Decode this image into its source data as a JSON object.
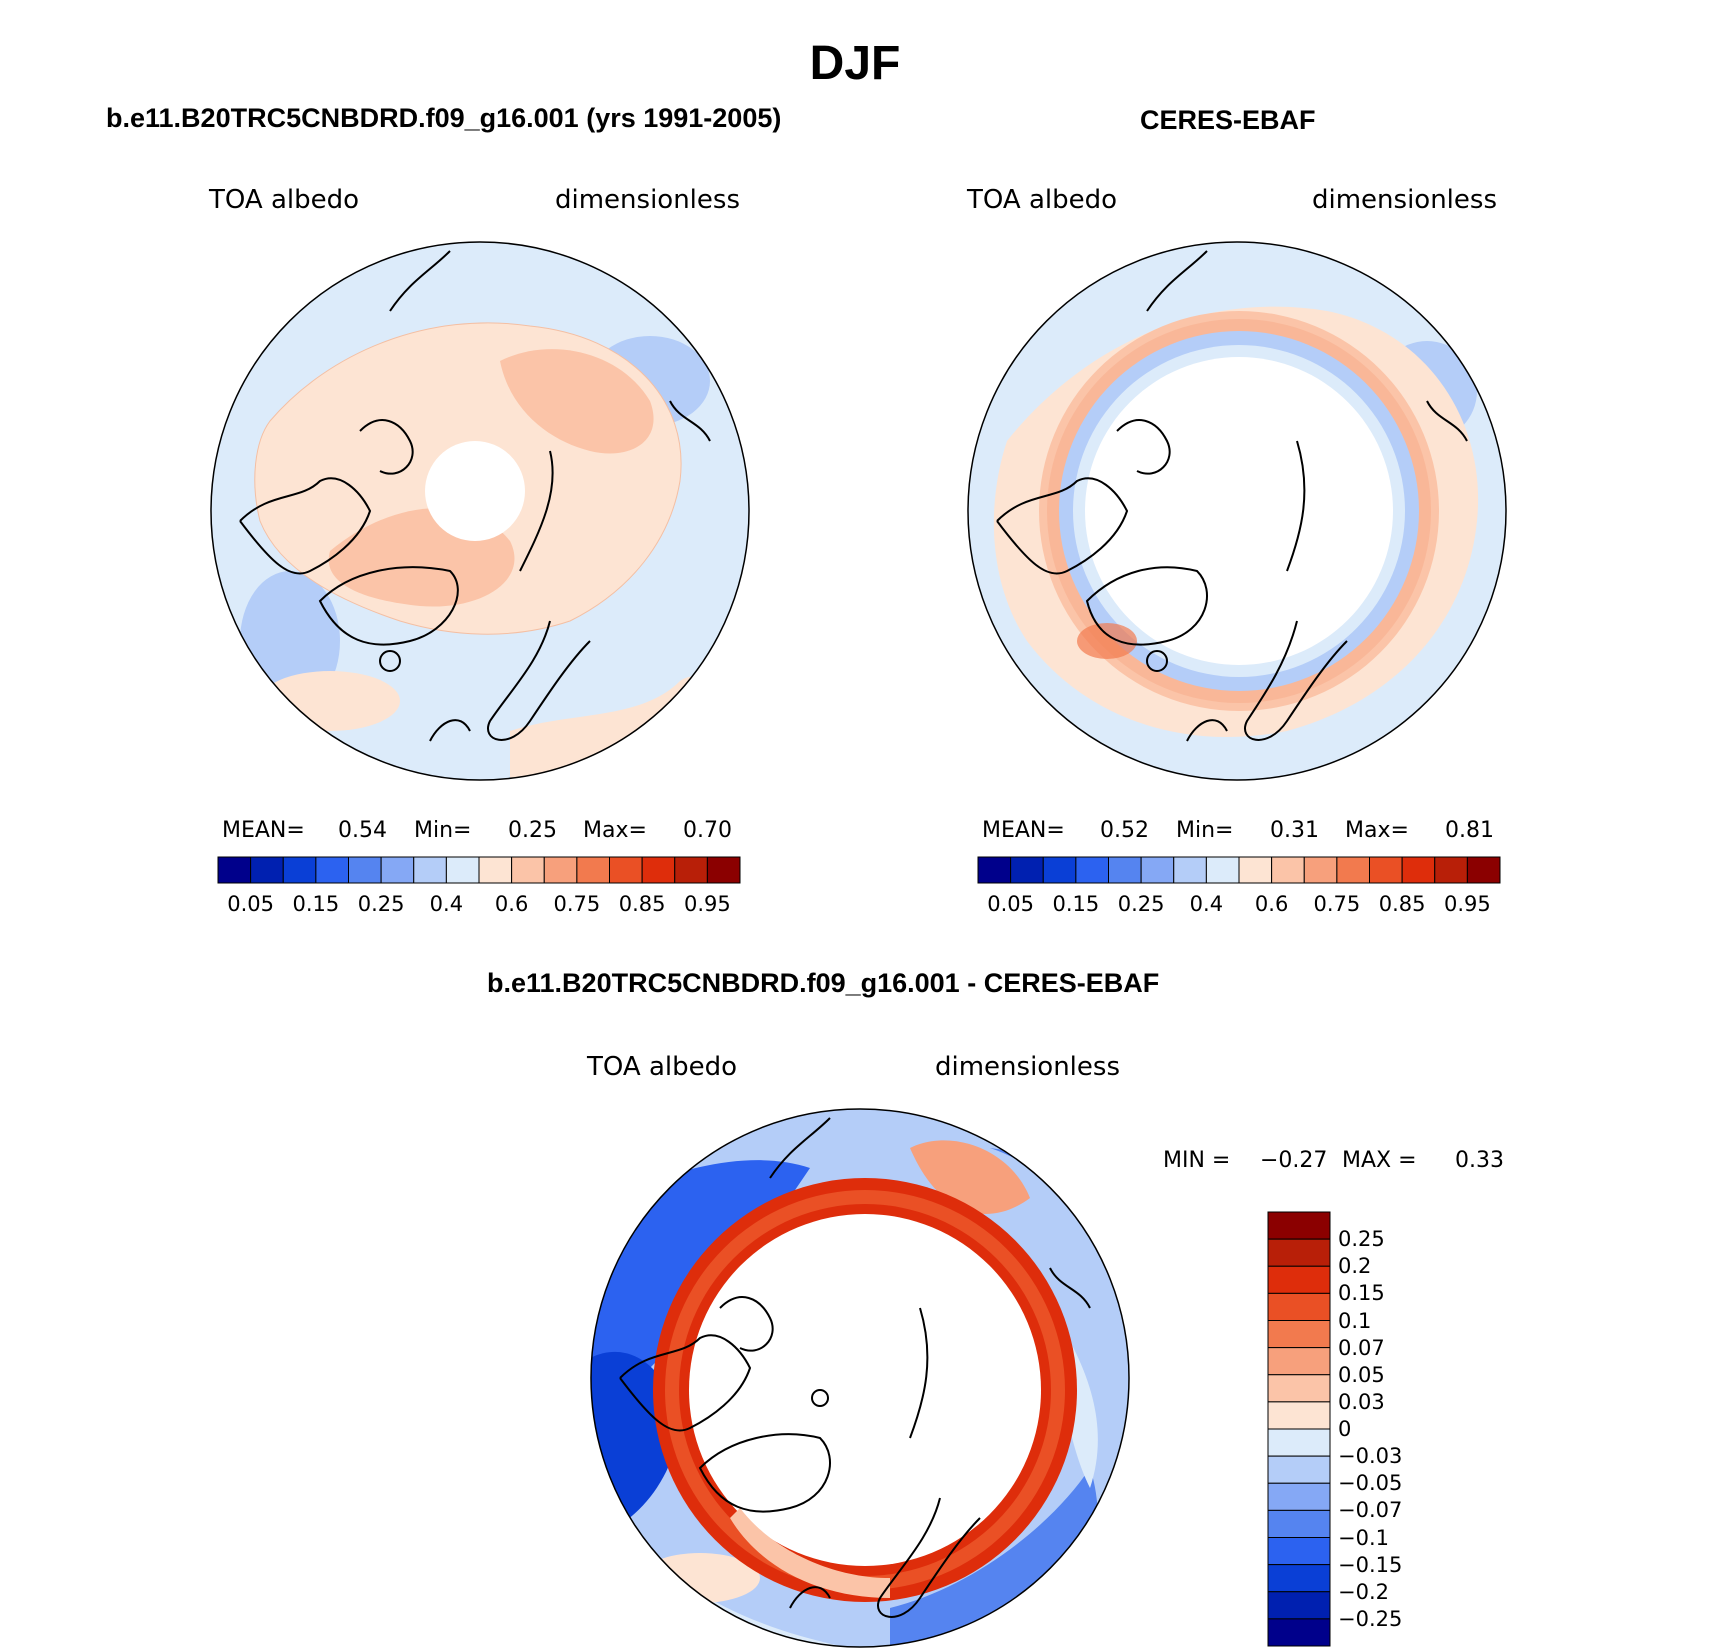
{
  "title": "DJF",
  "panels": [
    {
      "title": "b.e11.B20TRC5CNBDRD.f09_g16.001 (yrs 1991-2005)",
      "left_label": "TOA albedo",
      "right_label": "dimensionless",
      "stats": {
        "mean_label": "MEAN=",
        "mean": "0.54",
        "min_label": "Min=",
        "min": "0.25",
        "max_label": "Max=",
        "max": "0.70"
      },
      "colorbar_ticks": [
        "0.05",
        "0.15",
        "0.25",
        "0.4",
        "0.6",
        "0.75",
        "0.85",
        "0.95"
      ]
    },
    {
      "title": "CERES-EBAF",
      "left_label": "TOA albedo",
      "right_label": "dimensionless",
      "stats": {
        "mean_label": "MEAN=",
        "mean": "0.52",
        "min_label": "Min=",
        "min": "0.31",
        "max_label": "Max=",
        "max": "0.81"
      },
      "colorbar_ticks": [
        "0.05",
        "0.15",
        "0.25",
        "0.4",
        "0.6",
        "0.75",
        "0.85",
        "0.95"
      ]
    },
    {
      "title": "b.e11.B20TRC5CNBDRD.f09_g16.001 - CERES-EBAF",
      "left_label": "TOA albedo",
      "right_label": "dimensionless",
      "stats": {
        "min_label": "MIN =",
        "min": "−0.27",
        "max_label": "MAX =",
        "max": "0.33"
      },
      "colorbar_ticks": [
        "0.25",
        "0.2",
        "0.15",
        "0.1",
        "0.07",
        "0.05",
        "0.03",
        "0",
        "−0.03",
        "−0.05",
        "−0.07",
        "−0.1",
        "−0.15",
        "−0.2",
        "−0.25"
      ]
    }
  ],
  "colors": {
    "abs_scale": [
      "#00008b",
      "#0020b0",
      "#0a3fd6",
      "#2c62f0",
      "#5584f0",
      "#85a8f5",
      "#b4cdf8",
      "#dcebfa",
      "#fde4d3",
      "#fbc4a8",
      "#f7a07c",
      "#f27a4e",
      "#ea5025",
      "#de2d0b",
      "#b81f08",
      "#8b0000"
    ],
    "diff_scale": [
      "#8b0000",
      "#b81f08",
      "#de2d0b",
      "#ea5025",
      "#f27a4e",
      "#f7a07c",
      "#fbc4a8",
      "#fde4d3",
      "#dcebfa",
      "#b4cdf8",
      "#85a8f5",
      "#5584f0",
      "#2c62f0",
      "#0a3fd6",
      "#0020b0",
      "#00008b"
    ]
  }
}
